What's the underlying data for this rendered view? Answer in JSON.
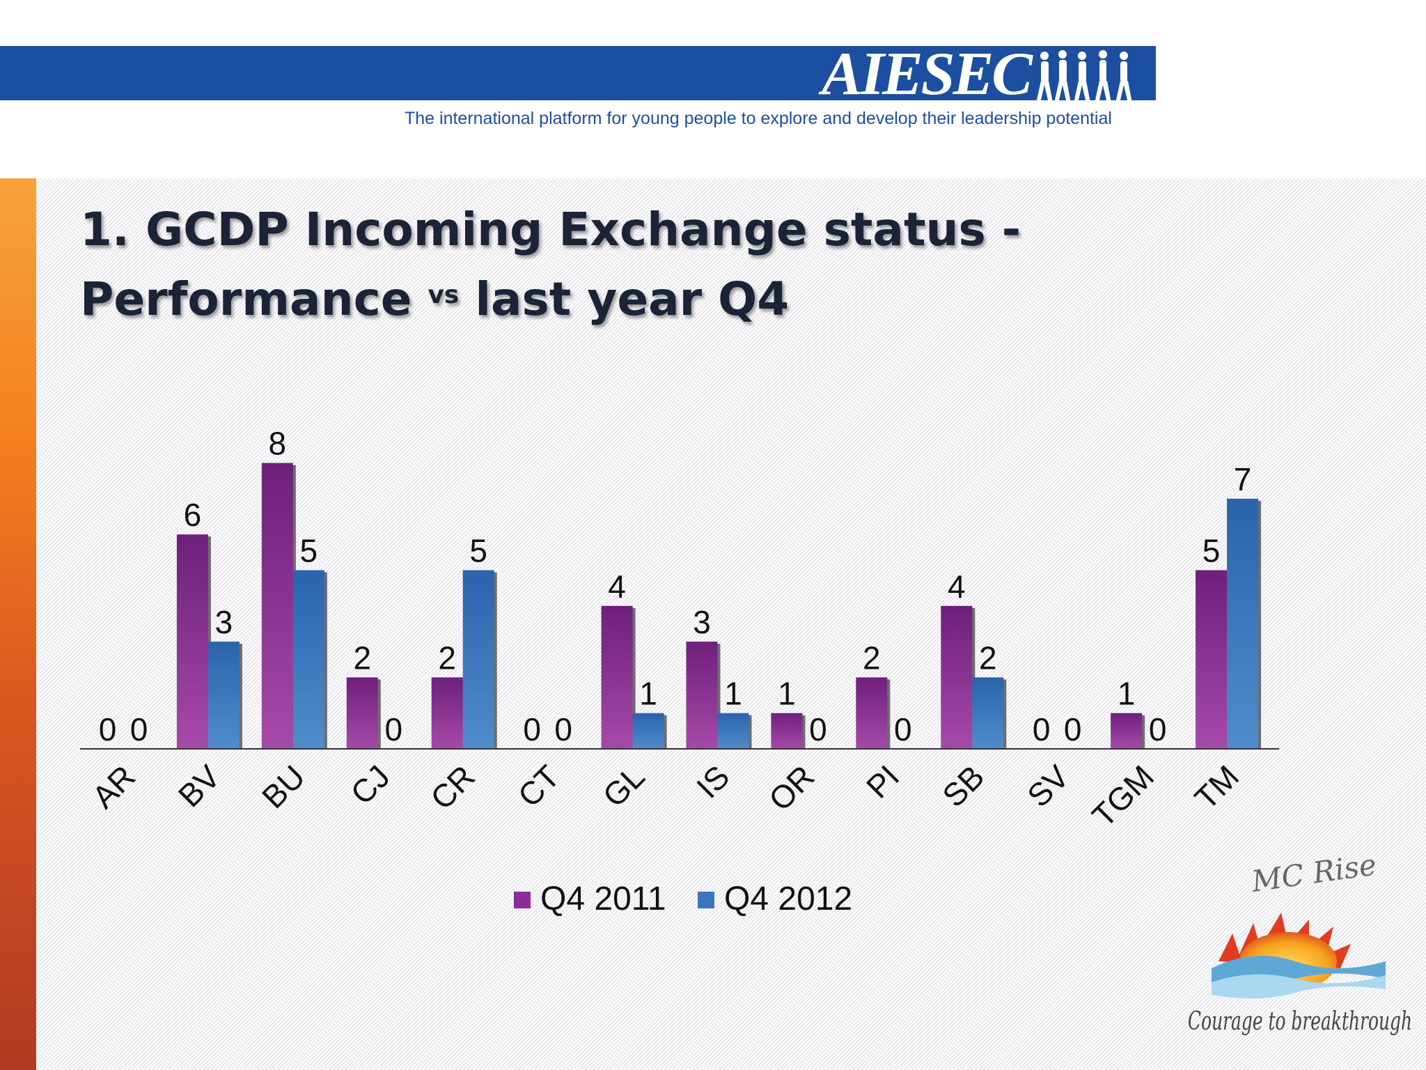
{
  "header": {
    "brand": "AIESEC",
    "tagline": "The international platform for young people to explore and develop their leadership potential"
  },
  "slide": {
    "title_line1": "1. GCDP Incoming Exchange status -",
    "title_pre": "Performance ",
    "title_sup": "vs",
    "title_post": " last year Q4"
  },
  "colors": {
    "header_band": "#1c4f9f",
    "series_2011": "#8b2d96",
    "series_2012": "#3a76bc"
  },
  "chart_data": {
    "type": "bar",
    "title": "1. GCDP Incoming Exchange status - Performance vs last year Q4",
    "categories": [
      "AR",
      "BV",
      "BU",
      "CJ",
      "CR",
      "CT",
      "GL",
      "IS",
      "OR",
      "PI",
      "SB",
      "SV",
      "TGM",
      "TM"
    ],
    "series": [
      {
        "name": "Q4 2011",
        "values": [
          0,
          6,
          8,
          2,
          2,
          0,
          4,
          3,
          1,
          2,
          4,
          0,
          1,
          5
        ]
      },
      {
        "name": "Q4 2012",
        "values": [
          0,
          3,
          5,
          0,
          5,
          0,
          1,
          1,
          0,
          0,
          2,
          0,
          0,
          7
        ]
      }
    ],
    "xlabel": "",
    "ylabel": "",
    "ylim": [
      0,
      8
    ],
    "grid": false,
    "legend": "bottom",
    "data_labels": true
  },
  "footer_logo": {
    "name": "MC Rise",
    "slogan": "Courage to breakthrough"
  }
}
